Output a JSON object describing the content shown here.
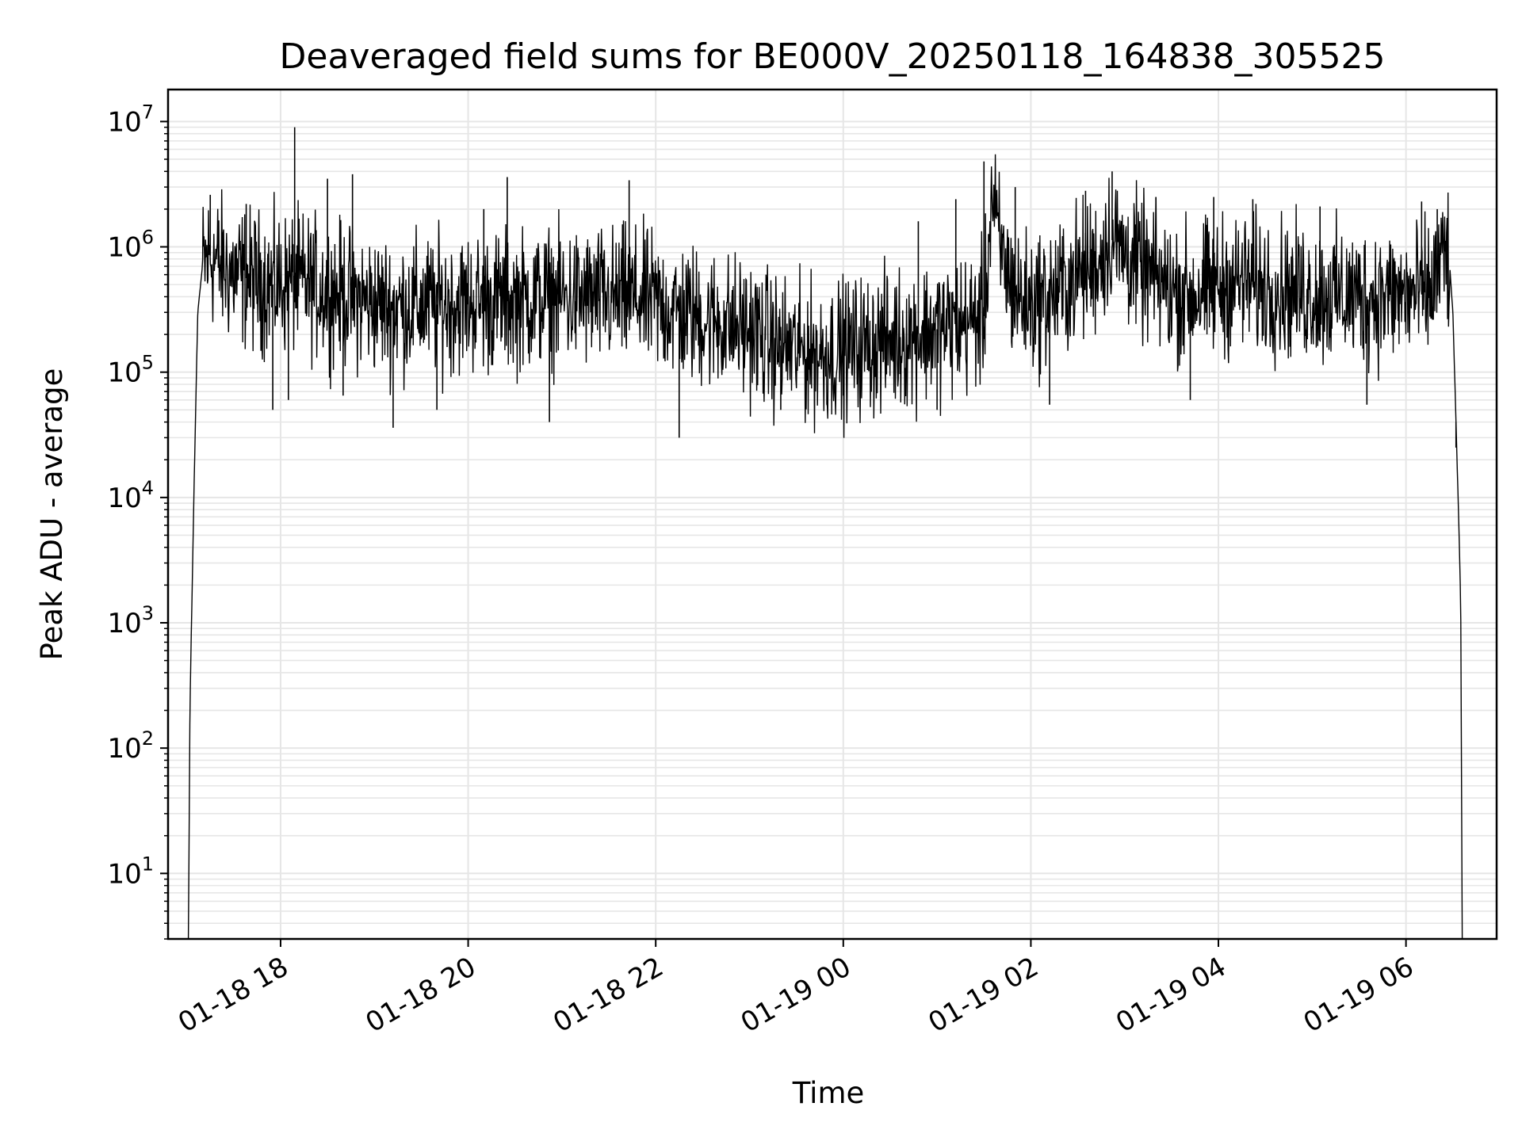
{
  "chart_data": {
    "type": "line",
    "title": "Deaveraged field sums for BE000V_20250118_164838_305525",
    "xlabel": "Time",
    "ylabel": "Peak ADU - average",
    "yscale": "log",
    "ylim": [
      3,
      18000000
    ],
    "xlim": [
      "2025-01-18 16:48",
      "2025-01-19 06:58"
    ],
    "x_ticks": [
      "01-18 18",
      "01-18 20",
      "01-18 22",
      "01-19 00",
      "01-19 02",
      "01-19 04",
      "01-19 06"
    ],
    "x_tick_values": [
      "2025-01-18 18:00",
      "2025-01-18 20:00",
      "2025-01-18 22:00",
      "2025-01-19 00:00",
      "2025-01-19 02:00",
      "2025-01-19 04:00",
      "2025-01-19 06:00"
    ],
    "y_ticks": [
      {
        "base": "10",
        "exp": "1",
        "value": 10
      },
      {
        "base": "10",
        "exp": "2",
        "value": 100
      },
      {
        "base": "10",
        "exp": "3",
        "value": 1000
      },
      {
        "base": "10",
        "exp": "4",
        "value": 10000
      },
      {
        "base": "10",
        "exp": "5",
        "value": 100000
      },
      {
        "base": "10",
        "exp": "6",
        "value": 1000000
      },
      {
        "base": "10",
        "exp": "7",
        "value": 10000000
      }
    ],
    "grid": true,
    "line_color": "#000000",
    "grid_color": "#e6e6e6",
    "series": [
      {
        "color": "#000000",
        "x": [
          "2025-01-18 17:01",
          "2025-01-18 17:02",
          "2025-01-18 17:03",
          "2025-01-18 17:05",
          "2025-01-18 17:07",
          "2025-01-18 17:10",
          "2025-01-18 17:15",
          "2025-01-18 17:25",
          "2025-01-18 17:40",
          "2025-01-18 17:55",
          "2025-01-18 18:10",
          "2025-01-18 18:20",
          "2025-01-18 18:30",
          "2025-01-18 18:45",
          "2025-01-18 19:00",
          "2025-01-18 19:15",
          "2025-01-18 19:30",
          "2025-01-18 20:00",
          "2025-01-18 20:30",
          "2025-01-18 21:00",
          "2025-01-18 21:30",
          "2025-01-18 21:45",
          "2025-01-18 22:00",
          "2025-01-18 22:15",
          "2025-01-18 22:30",
          "2025-01-18 23:00",
          "2025-01-18 23:15",
          "2025-01-18 23:30",
          "2025-01-18 23:45",
          "2025-01-19 00:00",
          "2025-01-19 00:20",
          "2025-01-19 00:40",
          "2025-01-19 01:00",
          "2025-01-19 01:10",
          "2025-01-19 01:20",
          "2025-01-19 01:30",
          "2025-01-19 01:35",
          "2025-01-19 01:40",
          "2025-01-19 01:50",
          "2025-01-19 02:00",
          "2025-01-19 02:15",
          "2025-01-19 02:30",
          "2025-01-19 02:45",
          "2025-01-19 02:50",
          "2025-01-19 03:00",
          "2025-01-19 03:15",
          "2025-01-19 03:30",
          "2025-01-19 03:45",
          "2025-01-19 03:55",
          "2025-01-19 04:05",
          "2025-01-19 04:15",
          "2025-01-19 04:30",
          "2025-01-19 05:00",
          "2025-01-19 05:30",
          "2025-01-19 06:00",
          "2025-01-19 06:15",
          "2025-01-19 06:25",
          "2025-01-19 06:28",
          "2025-01-19 06:30",
          "2025-01-19 06:32",
          "2025-01-19 06:34",
          "2025-01-19 06:35",
          "2025-01-19 06:36"
        ],
        "y": [
          3,
          200,
          1000,
          20000,
          300000,
          700000,
          850000,
          650000,
          550000,
          500000,
          520000,
          480000,
          450000,
          400000,
          350000,
          330000,
          340000,
          360000,
          370000,
          390000,
          380000,
          400000,
          350000,
          300000,
          270000,
          220000,
          170000,
          150000,
          140000,
          150000,
          170000,
          190000,
          220000,
          230000,
          250000,
          280000,
          2500000,
          1000000,
          400000,
          350000,
          420000,
          600000,
          800000,
          1200000,
          900000,
          600000,
          450000,
          420000,
          450000,
          500000,
          520000,
          480000,
          420000,
          400000,
          410000,
          420000,
          900000,
          700000,
          300000,
          40000,
          5000,
          1500,
          3
        ]
      }
    ],
    "spikes": [
      {
        "x": "2025-01-18 17:15",
        "y": 2600000
      },
      {
        "x": "2025-01-18 17:38",
        "y": 2200000
      },
      {
        "x": "2025-01-18 17:55",
        "y": 50000
      },
      {
        "x": "2025-01-18 18:05",
        "y": 60000
      },
      {
        "x": "2025-01-18 18:09",
        "y": 9000000
      },
      {
        "x": "2025-01-18 18:30",
        "y": 3500000
      },
      {
        "x": "2025-01-18 18:46",
        "y": 3800000
      },
      {
        "x": "2025-01-18 18:40",
        "y": 65000
      },
      {
        "x": "2025-01-18 19:12",
        "y": 36000
      },
      {
        "x": "2025-01-18 19:40",
        "y": 50000
      },
      {
        "x": "2025-01-18 20:10",
        "y": 2000000
      },
      {
        "x": "2025-01-18 20:25",
        "y": 3600000
      },
      {
        "x": "2025-01-18 20:52",
        "y": 40000
      },
      {
        "x": "2025-01-18 21:43",
        "y": 3400000
      },
      {
        "x": "2025-01-18 22:15",
        "y": 30000
      },
      {
        "x": "2025-01-18 23:20",
        "y": 50000
      },
      {
        "x": "2025-01-19 00:00",
        "y": 65000
      },
      {
        "x": "2025-01-19 00:48",
        "y": 1600000
      },
      {
        "x": "2025-01-19 01:00",
        "y": 50000
      },
      {
        "x": "2025-01-19 01:12",
        "y": 2400000
      },
      {
        "x": "2025-01-19 01:30",
        "y": 4800000
      },
      {
        "x": "2025-01-19 01:50",
        "y": 3000000
      },
      {
        "x": "2025-01-19 02:12",
        "y": 55000
      },
      {
        "x": "2025-01-19 02:35",
        "y": 2800000
      },
      {
        "x": "2025-01-19 02:52",
        "y": 4000000
      },
      {
        "x": "2025-01-19 03:20",
        "y": 2500000
      },
      {
        "x": "2025-01-19 03:42",
        "y": 60000
      },
      {
        "x": "2025-01-19 03:57",
        "y": 2500000
      },
      {
        "x": "2025-01-19 04:22",
        "y": 2400000
      },
      {
        "x": "2025-01-19 05:05",
        "y": 2100000
      },
      {
        "x": "2025-01-19 05:35",
        "y": 55000
      },
      {
        "x": "2025-01-19 06:10",
        "y": 2300000
      },
      {
        "x": "2025-01-19 06:20",
        "y": 2000000
      },
      {
        "x": "2025-01-19 06:32",
        "y": 25000
      }
    ]
  }
}
